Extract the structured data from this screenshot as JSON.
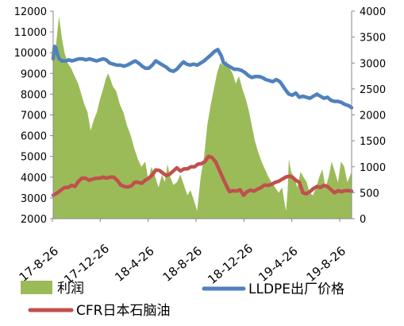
{
  "chart_data": {
    "type": "area-line combo",
    "title": "",
    "x_ticks": [
      "17-8-26",
      "17-12-26",
      "18-4-26",
      "18-8-26",
      "18-12-26",
      "19-4-26",
      "19-8-26"
    ],
    "x_range": [
      "2017-08-26",
      "2019-09-30"
    ],
    "y_left": {
      "min": 2000,
      "max": 12000,
      "step": 1000,
      "ticks": [
        "2000",
        "3000",
        "4000",
        "5000",
        "6000",
        "7000",
        "8000",
        "9000",
        "10000",
        "11000",
        "12000"
      ]
    },
    "y_right": {
      "min": 0,
      "max": 4000,
      "step": 500,
      "ticks": [
        "0",
        "500",
        "1000",
        "1500",
        "2000",
        "2500",
        "3000",
        "3500",
        "4000"
      ]
    },
    "grid": false,
    "legend_position": "bottom",
    "series": [
      {
        "name": "利润",
        "kind": "area",
        "axis": "right",
        "color": "#9BBB59",
        "points": [
          [
            "2017-08-26",
            3000
          ],
          [
            "2017-09-03",
            3400
          ],
          [
            "2017-09-10",
            3900
          ],
          [
            "2017-09-17",
            3500
          ],
          [
            "2017-09-24",
            3200
          ],
          [
            "2017-10-02",
            3000
          ],
          [
            "2017-10-11",
            2900
          ],
          [
            "2017-10-20",
            2750
          ],
          [
            "2017-10-29",
            2600
          ],
          [
            "2017-11-06",
            2400
          ],
          [
            "2017-11-14",
            2200
          ],
          [
            "2017-11-22",
            2050
          ],
          [
            "2017-11-30",
            1700
          ],
          [
            "2017-12-08",
            1900
          ],
          [
            "2017-12-16",
            2050
          ],
          [
            "2017-12-24",
            2300
          ],
          [
            "2018-01-01",
            2500
          ],
          [
            "2018-01-08",
            2700
          ],
          [
            "2018-01-14",
            2800
          ],
          [
            "2018-01-19",
            2700
          ],
          [
            "2018-01-26",
            2550
          ],
          [
            "2018-02-04",
            2450
          ],
          [
            "2018-02-13",
            2200
          ],
          [
            "2018-02-22",
            2050
          ],
          [
            "2018-03-03",
            1800
          ],
          [
            "2018-03-13",
            1600
          ],
          [
            "2018-03-22",
            1350
          ],
          [
            "2018-03-31",
            1150
          ],
          [
            "2018-04-09",
            1000
          ],
          [
            "2018-04-19",
            1100
          ],
          [
            "2018-04-27",
            750
          ],
          [
            "2018-05-05",
            1000
          ],
          [
            "2018-05-15",
            800
          ],
          [
            "2018-05-23",
            600
          ],
          [
            "2018-06-01",
            850
          ],
          [
            "2018-06-08",
            700
          ],
          [
            "2018-06-15",
            1050
          ],
          [
            "2018-06-22",
            800
          ],
          [
            "2018-06-30",
            650
          ],
          [
            "2018-07-09",
            700
          ],
          [
            "2018-07-18",
            850
          ],
          [
            "2018-07-27",
            650
          ],
          [
            "2018-08-05",
            450
          ],
          [
            "2018-08-13",
            550
          ],
          [
            "2018-08-22",
            350
          ],
          [
            "2018-08-30",
            150
          ],
          [
            "2018-09-08",
            800
          ],
          [
            "2018-09-17",
            1200
          ],
          [
            "2018-09-25",
            1800
          ],
          [
            "2018-10-04",
            2200
          ],
          [
            "2018-10-12",
            2500
          ],
          [
            "2018-10-20",
            2800
          ],
          [
            "2018-10-28",
            3000
          ],
          [
            "2018-11-05",
            2950
          ],
          [
            "2018-11-13",
            3050
          ],
          [
            "2018-11-21",
            2900
          ],
          [
            "2018-11-29",
            2800
          ],
          [
            "2018-12-07",
            2600
          ],
          [
            "2018-12-15",
            2750
          ],
          [
            "2018-12-24",
            2500
          ],
          [
            "2019-01-02",
            2300
          ],
          [
            "2019-01-09",
            2100
          ],
          [
            "2019-01-17",
            1800
          ],
          [
            "2019-01-25",
            1500
          ],
          [
            "2019-02-02",
            1300
          ],
          [
            "2019-02-11",
            1100
          ],
          [
            "2019-02-20",
            950
          ],
          [
            "2019-03-01",
            800
          ],
          [
            "2019-03-09",
            700
          ],
          [
            "2019-03-18",
            600
          ],
          [
            "2019-03-27",
            500
          ],
          [
            "2019-04-05",
            600
          ],
          [
            "2019-04-10",
            350
          ],
          [
            "2019-04-15",
            150
          ],
          [
            "2019-04-19",
            550
          ],
          [
            "2019-04-22",
            1150
          ],
          [
            "2019-04-28",
            900
          ],
          [
            "2019-05-06",
            800
          ],
          [
            "2019-05-14",
            600
          ],
          [
            "2019-05-22",
            900
          ],
          [
            "2019-05-30",
            800
          ],
          [
            "2019-06-07",
            700
          ],
          [
            "2019-06-14",
            500
          ],
          [
            "2019-06-23",
            450
          ],
          [
            "2019-07-01",
            600
          ],
          [
            "2019-07-09",
            800
          ],
          [
            "2019-07-17",
            950
          ],
          [
            "2019-07-25",
            600
          ],
          [
            "2019-08-02",
            800
          ],
          [
            "2019-08-10",
            1100
          ],
          [
            "2019-08-18",
            900
          ],
          [
            "2019-08-26",
            700
          ],
          [
            "2019-09-03",
            1100
          ],
          [
            "2019-09-11",
            1000
          ],
          [
            "2019-09-19",
            700
          ],
          [
            "2019-09-30",
            900
          ]
        ]
      },
      {
        "name": "LLDPE出厂价格",
        "kind": "line",
        "axis": "left",
        "color": "#4F81BD",
        "points": [
          [
            "2017-08-26",
            9700
          ],
          [
            "2017-08-29",
            10300
          ],
          [
            "2017-09-02",
            10250
          ],
          [
            "2017-09-05",
            10000
          ],
          [
            "2017-09-10",
            9700
          ],
          [
            "2017-09-17",
            9600
          ],
          [
            "2017-09-26",
            9600
          ],
          [
            "2017-10-05",
            9650
          ],
          [
            "2017-10-13",
            9600
          ],
          [
            "2017-10-22",
            9650
          ],
          [
            "2017-10-31",
            9700
          ],
          [
            "2017-11-09",
            9700
          ],
          [
            "2017-11-18",
            9650
          ],
          [
            "2017-11-27",
            9700
          ],
          [
            "2017-12-06",
            9650
          ],
          [
            "2017-12-15",
            9600
          ],
          [
            "2017-12-24",
            9650
          ],
          [
            "2018-01-01",
            9700
          ],
          [
            "2018-01-09",
            9650
          ],
          [
            "2018-01-18",
            9500
          ],
          [
            "2018-01-27",
            9450
          ],
          [
            "2018-02-05",
            9400
          ],
          [
            "2018-02-14",
            9400
          ],
          [
            "2018-02-23",
            9350
          ],
          [
            "2018-03-04",
            9400
          ],
          [
            "2018-03-14",
            9500
          ],
          [
            "2018-03-24",
            9600
          ],
          [
            "2018-04-02",
            9500
          ],
          [
            "2018-04-11",
            9350
          ],
          [
            "2018-04-19",
            9250
          ],
          [
            "2018-04-28",
            9250
          ],
          [
            "2018-05-07",
            9400
          ],
          [
            "2018-05-16",
            9600
          ],
          [
            "2018-05-25",
            9500
          ],
          [
            "2018-06-03",
            9400
          ],
          [
            "2018-06-12",
            9300
          ],
          [
            "2018-06-21",
            9150
          ],
          [
            "2018-06-30",
            9100
          ],
          [
            "2018-07-09",
            9200
          ],
          [
            "2018-07-18",
            9400
          ],
          [
            "2018-07-26",
            9550
          ],
          [
            "2018-08-03",
            9450
          ],
          [
            "2018-08-12",
            9400
          ],
          [
            "2018-08-21",
            9450
          ],
          [
            "2018-08-30",
            9400
          ],
          [
            "2018-09-08",
            9500
          ],
          [
            "2018-09-17",
            9600
          ],
          [
            "2018-09-26",
            9750
          ],
          [
            "2018-10-05",
            9900
          ],
          [
            "2018-10-13",
            10050
          ],
          [
            "2018-10-22",
            10150
          ],
          [
            "2018-10-31",
            9850
          ],
          [
            "2018-11-06",
            9500
          ],
          [
            "2018-11-15",
            9400
          ],
          [
            "2018-11-24",
            9300
          ],
          [
            "2018-12-03",
            9200
          ],
          [
            "2018-12-12",
            9200
          ],
          [
            "2018-12-21",
            9150
          ],
          [
            "2018-12-30",
            9050
          ],
          [
            "2019-01-08",
            8900
          ],
          [
            "2019-01-17",
            8800
          ],
          [
            "2019-01-26",
            8850
          ],
          [
            "2019-02-04",
            8850
          ],
          [
            "2019-02-13",
            8800
          ],
          [
            "2019-02-22",
            8700
          ],
          [
            "2019-03-03",
            8650
          ],
          [
            "2019-03-12",
            8600
          ],
          [
            "2019-03-21",
            8700
          ],
          [
            "2019-03-30",
            8600
          ],
          [
            "2019-04-05",
            8450
          ],
          [
            "2019-04-14",
            8200
          ],
          [
            "2019-04-22",
            8000
          ],
          [
            "2019-05-01",
            7950
          ],
          [
            "2019-05-10",
            8050
          ],
          [
            "2019-05-19",
            7850
          ],
          [
            "2019-05-28",
            7900
          ],
          [
            "2019-06-06",
            7850
          ],
          [
            "2019-06-15",
            7800
          ],
          [
            "2019-06-24",
            7900
          ],
          [
            "2019-07-03",
            8000
          ],
          [
            "2019-07-12",
            7900
          ],
          [
            "2019-07-21",
            7800
          ],
          [
            "2019-07-30",
            7850
          ],
          [
            "2019-08-08",
            7700
          ],
          [
            "2019-08-17",
            7650
          ],
          [
            "2019-08-26",
            7650
          ],
          [
            "2019-09-04",
            7600
          ],
          [
            "2019-09-13",
            7500
          ],
          [
            "2019-09-22",
            7450
          ],
          [
            "2019-09-30",
            7350
          ]
        ]
      },
      {
        "name": "CFR日本石脑油",
        "kind": "line",
        "axis": "right",
        "color": "#C0504D",
        "points": [
          [
            "2017-08-26",
            450
          ],
          [
            "2017-09-06",
            500
          ],
          [
            "2017-09-15",
            550
          ],
          [
            "2017-09-24",
            600
          ],
          [
            "2017-10-03",
            600
          ],
          [
            "2017-10-12",
            640
          ],
          [
            "2017-10-21",
            620
          ],
          [
            "2017-10-30",
            720
          ],
          [
            "2017-11-08",
            780
          ],
          [
            "2017-11-17",
            780
          ],
          [
            "2017-11-26",
            740
          ],
          [
            "2017-12-05",
            760
          ],
          [
            "2017-12-14",
            780
          ],
          [
            "2017-12-23",
            780
          ],
          [
            "2018-01-01",
            800
          ],
          [
            "2018-01-10",
            780
          ],
          [
            "2018-01-19",
            800
          ],
          [
            "2018-01-28",
            800
          ],
          [
            "2018-02-06",
            740
          ],
          [
            "2018-02-15",
            650
          ],
          [
            "2018-02-24",
            620
          ],
          [
            "2018-03-05",
            610
          ],
          [
            "2018-03-14",
            630
          ],
          [
            "2018-03-23",
            700
          ],
          [
            "2018-04-01",
            700
          ],
          [
            "2018-04-10",
            680
          ],
          [
            "2018-04-19",
            740
          ],
          [
            "2018-04-28",
            780
          ],
          [
            "2018-05-07",
            840
          ],
          [
            "2018-05-16",
            940
          ],
          [
            "2018-05-25",
            930
          ],
          [
            "2018-06-03",
            880
          ],
          [
            "2018-06-12",
            830
          ],
          [
            "2018-06-21",
            860
          ],
          [
            "2018-06-30",
            920
          ],
          [
            "2018-07-09",
            980
          ],
          [
            "2018-07-18",
            920
          ],
          [
            "2018-07-27",
            960
          ],
          [
            "2018-08-05",
            960
          ],
          [
            "2018-08-14",
            1000
          ],
          [
            "2018-08-23",
            1000
          ],
          [
            "2018-09-01",
            1050
          ],
          [
            "2018-09-10",
            1060
          ],
          [
            "2018-09-19",
            1100
          ],
          [
            "2018-09-28",
            1200
          ],
          [
            "2018-10-07",
            1180
          ],
          [
            "2018-10-16",
            1100
          ],
          [
            "2018-10-25",
            950
          ],
          [
            "2018-11-03",
            800
          ],
          [
            "2018-11-12",
            650
          ],
          [
            "2018-11-21",
            520
          ],
          [
            "2018-11-30",
            540
          ],
          [
            "2018-12-09",
            530
          ],
          [
            "2018-12-18",
            560
          ],
          [
            "2018-12-27",
            450
          ],
          [
            "2019-01-05",
            520
          ],
          [
            "2019-01-14",
            550
          ],
          [
            "2019-01-23",
            530
          ],
          [
            "2019-02-01",
            570
          ],
          [
            "2019-02-10",
            600
          ],
          [
            "2019-02-19",
            650
          ],
          [
            "2019-02-28",
            640
          ],
          [
            "2019-03-09",
            660
          ],
          [
            "2019-03-18",
            700
          ],
          [
            "2019-03-27",
            720
          ],
          [
            "2019-04-05",
            760
          ],
          [
            "2019-04-14",
            800
          ],
          [
            "2019-04-22",
            820
          ],
          [
            "2019-05-01",
            800
          ],
          [
            "2019-05-10",
            740
          ],
          [
            "2019-05-19",
            700
          ],
          [
            "2019-05-28",
            500
          ],
          [
            "2019-06-06",
            480
          ],
          [
            "2019-06-15",
            520
          ],
          [
            "2019-06-24",
            580
          ],
          [
            "2019-07-03",
            620
          ],
          [
            "2019-07-12",
            600
          ],
          [
            "2019-07-21",
            640
          ],
          [
            "2019-07-30",
            620
          ],
          [
            "2019-08-08",
            560
          ],
          [
            "2019-08-17",
            500
          ],
          [
            "2019-08-26",
            540
          ],
          [
            "2019-09-04",
            520
          ],
          [
            "2019-09-13",
            540
          ],
          [
            "2019-09-22",
            540
          ],
          [
            "2019-09-30",
            530
          ]
        ]
      }
    ]
  }
}
